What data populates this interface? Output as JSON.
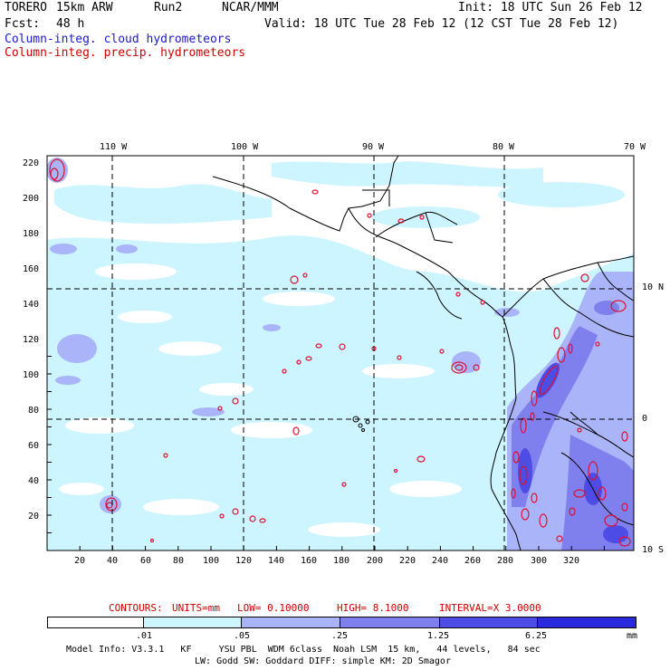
{
  "header": {
    "model": "TORERO",
    "resolution": "15km ARW",
    "run": "Run2",
    "org": "NCAR/MMM",
    "init": "Init: 18 UTC Sun 26 Feb 12",
    "fcst_label": "Fcst:",
    "fcst_value": "48 h",
    "valid": "Valid: 18 UTC Tue 28 Feb 12 (12 CST Tue 28 Feb 12)"
  },
  "fields": {
    "cloud": "Column-integ. cloud hydrometeors",
    "precip": "Column-integ. precip. hydrometeors"
  },
  "map": {
    "top_lon_labels": [
      "110 W",
      "100 W",
      "90 W",
      "80 W",
      "70 W"
    ],
    "right_lat_labels": [
      "10 N",
      "0",
      "10 S"
    ],
    "left_ticks": [
      "220",
      "200",
      "180",
      "160",
      "140",
      "120",
      "100",
      "80",
      "60",
      "40",
      "20"
    ],
    "bottom_ticks": [
      "20",
      "40",
      "60",
      "80",
      "100",
      "120",
      "140",
      "160",
      "180",
      "200",
      "220",
      "240",
      "260",
      "280",
      "300",
      "320"
    ],
    "colors": {
      "shade1": "#ccf5ff",
      "shade2": "#aab4f8",
      "shade3": "#7f7fee",
      "shade4": "#4d4de6",
      "shade5": "#2a2add",
      "contour": "#dd1133"
    }
  },
  "contour_caption": {
    "contours": "CONTOURS:",
    "units": "UNITS=mm",
    "low": "LOW= 0.10000",
    "high": "HIGH= 8.1000",
    "interval": "INTERVAL=X 3.0000"
  },
  "colorbar": {
    "labels": [
      ".01",
      ".05",
      ".25",
      "1.25",
      "6.25"
    ],
    "unit": "mm",
    "colors": [
      "#ffffff",
      "#ccf5ff",
      "#aab4f8",
      "#7f7fee",
      "#4d4de6",
      "#2a2add"
    ]
  },
  "footer": {
    "line1": "Model Info: V3.3.1   KF     YSU PBL  WDM 6class  Noah LSM  15 km,   44 levels,   84 sec",
    "line2": "LW: Godd SW: Goddard DIFF: simple KM: 2D Smagor"
  }
}
